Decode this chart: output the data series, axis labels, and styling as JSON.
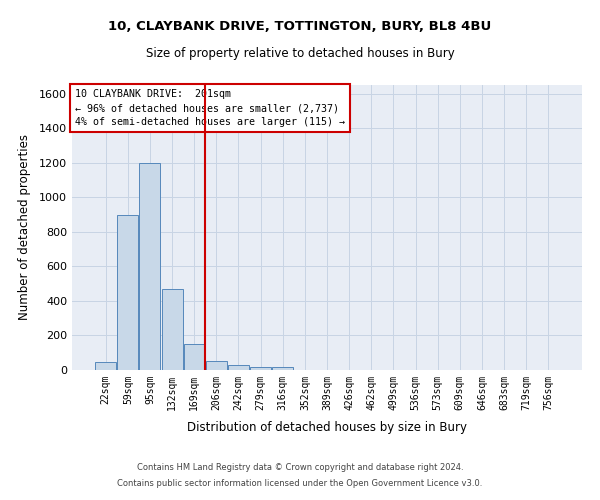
{
  "title_line1": "10, CLAYBANK DRIVE, TOTTINGTON, BURY, BL8 4BU",
  "title_line2": "Size of property relative to detached houses in Bury",
  "xlabel": "Distribution of detached houses by size in Bury",
  "ylabel": "Number of detached properties",
  "footnote1": "Contains HM Land Registry data © Crown copyright and database right 2024.",
  "footnote2": "Contains public sector information licensed under the Open Government Licence v3.0.",
  "bar_color": "#c8d8e8",
  "bar_edge_color": "#5588bb",
  "grid_color": "#c8d4e4",
  "annotation_box_color": "#cc0000",
  "vline_color": "#cc0000",
  "bins": [
    "22sqm",
    "59sqm",
    "95sqm",
    "132sqm",
    "169sqm",
    "206sqm",
    "242sqm",
    "279sqm",
    "316sqm",
    "352sqm",
    "389sqm",
    "426sqm",
    "462sqm",
    "499sqm",
    "536sqm",
    "573sqm",
    "609sqm",
    "646sqm",
    "683sqm",
    "719sqm",
    "756sqm"
  ],
  "values": [
    45,
    900,
    1200,
    470,
    150,
    55,
    30,
    20,
    20,
    0,
    0,
    0,
    0,
    0,
    0,
    0,
    0,
    0,
    0,
    0,
    0
  ],
  "vline_bin_index": 5,
  "annotation_line1": "10 CLAYBANK DRIVE:  201sqm",
  "annotation_line2": "← 96% of detached houses are smaller (2,737)",
  "annotation_line3": "4% of semi-detached houses are larger (115) →",
  "ylim": [
    0,
    1650
  ],
  "yticks": [
    0,
    200,
    400,
    600,
    800,
    1000,
    1200,
    1400,
    1600
  ],
  "background_color": "#e8edf5",
  "fig_width": 6.0,
  "fig_height": 5.0,
  "dpi": 100
}
